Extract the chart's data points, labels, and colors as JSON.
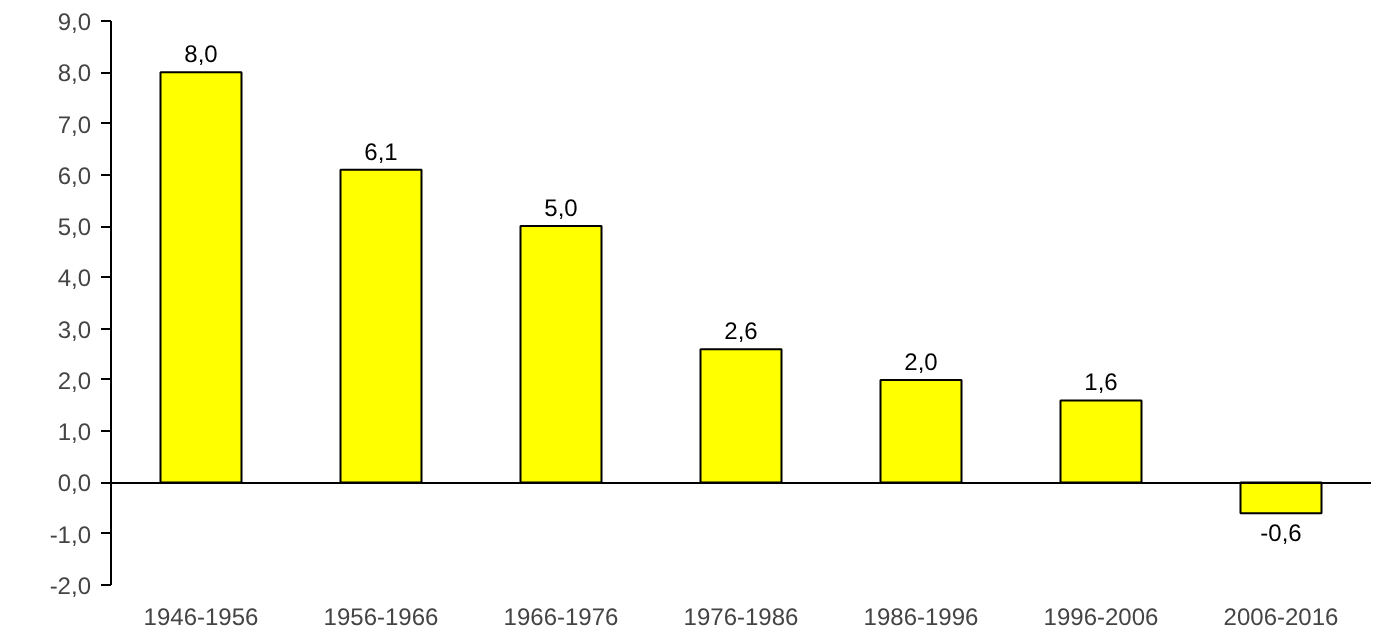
{
  "chart_data": {
    "type": "bar",
    "categories": [
      "1946-1956",
      "1956-1966",
      "1966-1976",
      "1976-1986",
      "1986-1996",
      "1996-2006",
      "2006-2016"
    ],
    "values": [
      8.0,
      6.1,
      5.0,
      2.6,
      2.0,
      1.6,
      -0.6
    ],
    "value_labels": [
      "8,0",
      "6,1",
      "5,0",
      "2,6",
      "2,0",
      "1,6",
      "-0,6"
    ],
    "color": "#ffff00",
    "ylim": [
      -2,
      9
    ],
    "yticks": [
      {
        "value": -2,
        "label": "-2,0"
      },
      {
        "value": -1,
        "label": "-1,0"
      },
      {
        "value": 0,
        "label": "0,0"
      },
      {
        "value": 1,
        "label": "1,0"
      },
      {
        "value": 2,
        "label": "2,0"
      },
      {
        "value": 3,
        "label": "3,0"
      },
      {
        "value": 4,
        "label": "4,0"
      },
      {
        "value": 5,
        "label": "5,0"
      },
      {
        "value": 6,
        "label": "6,0"
      },
      {
        "value": 7,
        "label": "7,0"
      },
      {
        "value": 8,
        "label": "8,0"
      },
      {
        "value": 9,
        "label": "9,0"
      }
    ]
  }
}
